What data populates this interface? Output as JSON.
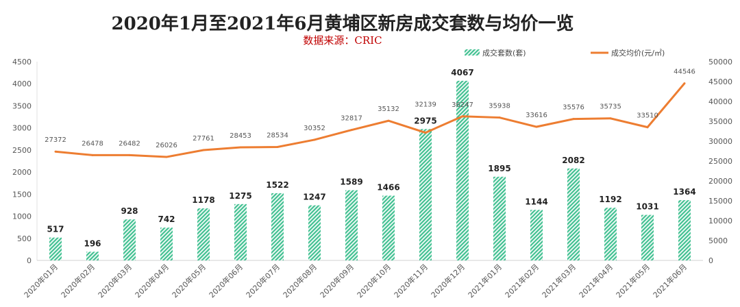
{
  "chart_data": {
    "type": "bar",
    "title": "2020年1月至2021年6月黄埔区新房成交套数与均价一览",
    "subtitle": "数据来源：CRIC",
    "categories": [
      "2020年01月",
      "2020年02月",
      "2020年03月",
      "2020年04月",
      "2020年05月",
      "2020年06月",
      "2020年07月",
      "2020年08月",
      "2020年09月",
      "2020年10月",
      "2020年11月",
      "2020年12月",
      "2021年01月",
      "2021年02月",
      "2021年03月",
      "2021年04月",
      "2021年05月",
      "2021年06月"
    ],
    "series": [
      {
        "name": "成交套数(套)",
        "type": "bar",
        "axis": "left",
        "color": "#3dbf8f",
        "values": [
          517,
          196,
          928,
          742,
          1178,
          1275,
          1522,
          1247,
          1589,
          1466,
          2975,
          4067,
          1895,
          1144,
          2082,
          1192,
          1031,
          1364
        ]
      },
      {
        "name": "成交均价(元/㎡)",
        "type": "line",
        "axis": "right",
        "color": "#ed7d31",
        "values": [
          27372,
          26478,
          26482,
          26026,
          27761,
          28453,
          28534,
          30352,
          32817,
          35132,
          32139,
          36247,
          35938,
          33616,
          35576,
          35735,
          33510,
          44546
        ]
      }
    ],
    "ylim_left": [
      0,
      4500
    ],
    "yticks_left": [
      0,
      500,
      1000,
      1500,
      2000,
      2500,
      3000,
      3500,
      4000,
      4500
    ],
    "ylim_right": [
      0,
      50000
    ],
    "yticks_right": [
      0,
      5000,
      10000,
      15000,
      20000,
      25000,
      30000,
      35000,
      40000,
      45000,
      50000
    ],
    "legend": "top-right",
    "grid": false
  }
}
